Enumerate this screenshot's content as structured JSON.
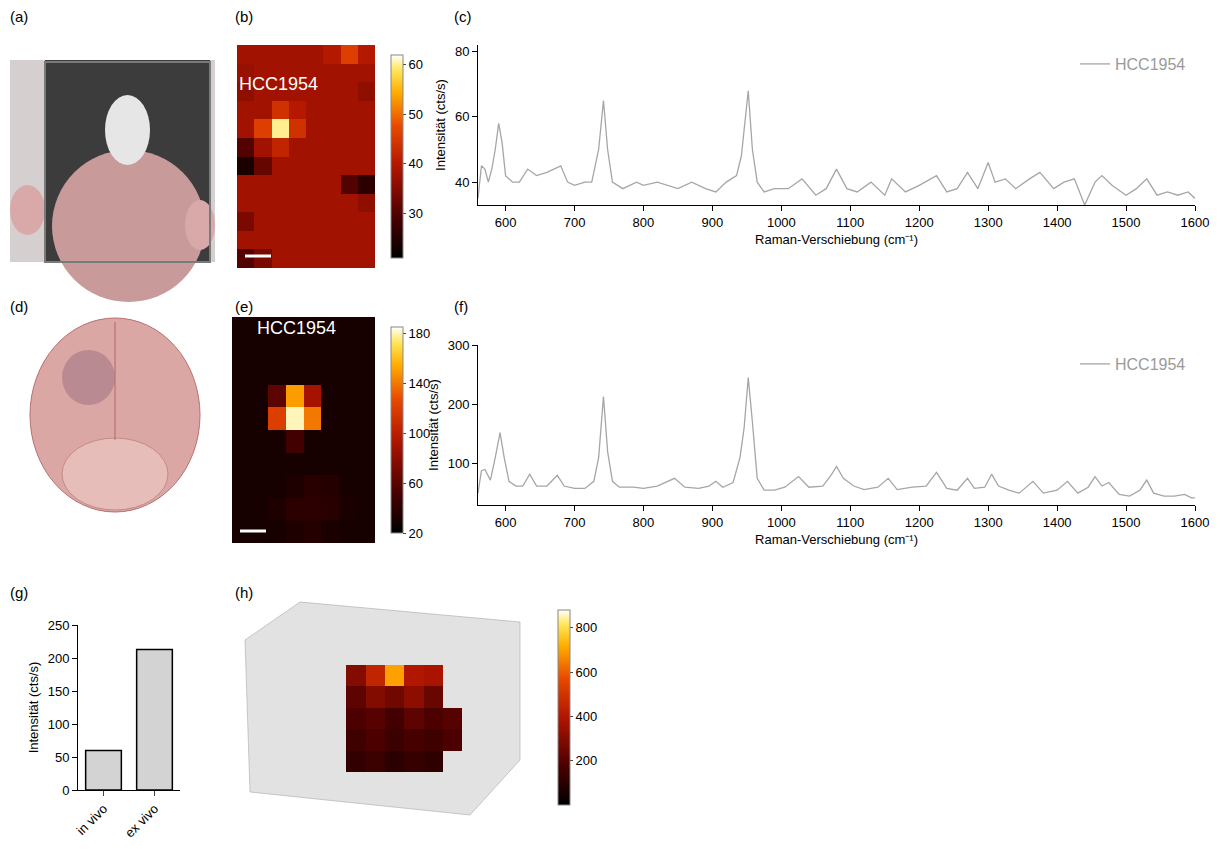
{
  "chart_data": [
    {
      "panel_label": "(a)",
      "type": "photo"
    },
    {
      "panel_label": "(b)",
      "type": "heatmap",
      "annotations": [
        "HCC1954"
      ],
      "tick_labels": false,
      "cells": [
        [
          38,
          38,
          38,
          38,
          38,
          40,
          46,
          40
        ],
        [
          37,
          38,
          38,
          38,
          38,
          38,
          38,
          38
        ],
        [
          36,
          38,
          38,
          38,
          38,
          38,
          38,
          36
        ],
        [
          38,
          38,
          44,
          40,
          38,
          38,
          38,
          38
        ],
        [
          38,
          46,
          60,
          44,
          38,
          38,
          38,
          38
        ],
        [
          30,
          38,
          42,
          38,
          38,
          38,
          38,
          38
        ],
        [
          24,
          32,
          38,
          38,
          38,
          38,
          38,
          38
        ],
        [
          38,
          38,
          38,
          38,
          38,
          38,
          30,
          26
        ],
        [
          38,
          38,
          38,
          38,
          38,
          38,
          38,
          36
        ],
        [
          34,
          38,
          38,
          38,
          38,
          38,
          38,
          38
        ],
        [
          38,
          38,
          38,
          38,
          38,
          38,
          38,
          38
        ],
        [
          30,
          34,
          38,
          38,
          38,
          38,
          38,
          38
        ]
      ],
      "zlim": [
        21,
        62
      ],
      "zticks": [
        30,
        40,
        50,
        60
      ]
    },
    {
      "panel_label": "(c)",
      "type": "line",
      "x_label": "Raman-Verschiebung (cm⁻¹)",
      "y_label": "Intensität (cts/s)",
      "x": [
        560,
        565,
        570,
        575,
        580,
        585,
        590,
        595,
        600,
        610,
        620,
        632,
        645,
        660,
        680,
        690,
        700,
        715,
        725,
        735,
        742,
        748,
        755,
        770,
        790,
        800,
        820,
        850,
        870,
        890,
        905,
        920,
        935,
        942,
        952,
        958,
        965,
        975,
        990,
        1010,
        1030,
        1050,
        1065,
        1080,
        1095,
        1110,
        1130,
        1150,
        1160,
        1180,
        1200,
        1225,
        1240,
        1255,
        1270,
        1285,
        1300,
        1310,
        1325,
        1340,
        1360,
        1375,
        1395,
        1410,
        1425,
        1440,
        1455,
        1465,
        1480,
        1500,
        1515,
        1530,
        1545,
        1560,
        1575,
        1590,
        1600
      ],
      "series": [
        {
          "name": "HCC1954",
          "color": "#a6a6a6",
          "values": [
            35,
            45,
            44,
            40,
            44,
            50,
            58,
            52,
            42,
            40,
            40,
            44,
            42,
            43,
            45,
            40,
            39,
            40,
            40,
            50,
            65,
            50,
            40,
            38,
            40,
            39,
            40,
            38,
            40,
            38,
            37,
            40,
            42,
            48,
            68,
            50,
            40,
            37,
            38,
            38,
            41,
            36,
            38,
            44,
            38,
            37,
            40,
            36,
            41,
            37,
            39,
            42,
            37,
            38,
            43,
            38,
            46,
            40,
            41,
            38,
            41,
            43,
            38,
            40,
            41,
            33,
            40,
            42,
            39,
            36,
            38,
            41,
            36,
            37,
            36,
            37,
            35
          ]
        }
      ],
      "xlim": [
        560,
        1600
      ],
      "xticks": [
        600,
        700,
        800,
        900,
        1000,
        1100,
        1200,
        1300,
        1400,
        1500,
        1600
      ],
      "ylim": [
        33,
        82
      ],
      "yticks": [
        40,
        60,
        80
      ],
      "legend": "top right",
      "grid": false
    },
    {
      "panel_label": "(d)",
      "type": "photo"
    },
    {
      "panel_label": "(e)",
      "type": "heatmap",
      "annotations": [
        "HCC1954"
      ],
      "tick_labels": false,
      "cells": [
        [
          30,
          30,
          30,
          30,
          30,
          30,
          30,
          30
        ],
        [
          30,
          30,
          30,
          30,
          30,
          30,
          30,
          30
        ],
        [
          30,
          30,
          30,
          30,
          30,
          30,
          30,
          30
        ],
        [
          30,
          30,
          60,
          150,
          90,
          30,
          30,
          30
        ],
        [
          30,
          30,
          120,
          180,
          140,
          30,
          30,
          30
        ],
        [
          30,
          30,
          30,
          50,
          30,
          30,
          30,
          30
        ],
        [
          30,
          30,
          30,
          30,
          30,
          30,
          30,
          30
        ],
        [
          30,
          30,
          30,
          34,
          38,
          36,
          30,
          30
        ],
        [
          30,
          30,
          34,
          40,
          40,
          38,
          32,
          30
        ],
        [
          30,
          30,
          30,
          34,
          36,
          32,
          30,
          30
        ]
      ],
      "zlim": [
        20,
        185
      ],
      "zticks": [
        20,
        60,
        100,
        140,
        180
      ]
    },
    {
      "panel_label": "(f)",
      "type": "line",
      "x_label": "Raman-Verschiebung (cm⁻¹)",
      "y_label": "Intensität (cts/s)",
      "x": [
        560,
        565,
        570,
        578,
        585,
        592,
        598,
        605,
        615,
        625,
        635,
        645,
        660,
        675,
        685,
        700,
        715,
        728,
        735,
        742,
        748,
        755,
        765,
        785,
        800,
        820,
        845,
        860,
        880,
        895,
        905,
        915,
        930,
        940,
        946,
        952,
        958,
        965,
        975,
        990,
        1005,
        1025,
        1040,
        1060,
        1072,
        1080,
        1090,
        1105,
        1120,
        1140,
        1155,
        1168,
        1190,
        1210,
        1225,
        1240,
        1255,
        1270,
        1280,
        1295,
        1305,
        1315,
        1330,
        1345,
        1365,
        1380,
        1400,
        1415,
        1430,
        1445,
        1455,
        1465,
        1475,
        1490,
        1505,
        1520,
        1530,
        1540,
        1555,
        1570,
        1585,
        1595,
        1600
      ],
      "series": [
        {
          "name": "HCC1954",
          "color": "#a6a6a6",
          "values": [
            50,
            88,
            90,
            72,
            110,
            152,
            110,
            70,
            62,
            62,
            82,
            62,
            62,
            80,
            62,
            58,
            58,
            70,
            110,
            213,
            120,
            70,
            60,
            60,
            58,
            62,
            75,
            60,
            58,
            62,
            70,
            60,
            68,
            110,
            160,
            245,
            170,
            75,
            55,
            55,
            60,
            78,
            60,
            62,
            80,
            95,
            75,
            62,
            56,
            60,
            75,
            56,
            60,
            62,
            85,
            58,
            55,
            75,
            58,
            60,
            82,
            62,
            55,
            50,
            70,
            50,
            55,
            70,
            50,
            60,
            78,
            62,
            68,
            48,
            45,
            55,
            72,
            50,
            45,
            45,
            48,
            42,
            42
          ]
        }
      ],
      "xlim": [
        560,
        1600
      ],
      "xticks": [
        600,
        700,
        800,
        900,
        1000,
        1100,
        1200,
        1300,
        1400,
        1500,
        1600
      ],
      "ylim": [
        30,
        300
      ],
      "yticks": [
        100,
        200,
        300
      ],
      "legend": "top right",
      "grid": false
    },
    {
      "panel_label": "(g)",
      "type": "bar",
      "y_label": "Intensität (cts/s)",
      "categories": [
        "in vivo",
        "ex vivo"
      ],
      "values": [
        60,
        213
      ],
      "color": "#d3d3d3",
      "ylim": [
        0,
        250
      ],
      "yticks": [
        0,
        50,
        100,
        150,
        200,
        250
      ],
      "grid": false
    },
    {
      "panel_label": "(h)",
      "type": "heatmap",
      "tick_labels": false,
      "cells": [
        [
          null,
          null,
          null,
          null,
          null,
          null,
          null,
          null,
          null,
          null,
          null,
          null,
          null,
          null
        ],
        [
          null,
          null,
          null,
          null,
          null,
          null,
          null,
          null,
          null,
          null,
          null,
          null,
          null,
          null
        ],
        [
          null,
          null,
          null,
          null,
          null,
          null,
          null,
          null,
          null,
          null,
          null,
          null,
          null,
          null
        ],
        [
          null,
          null,
          null,
          null,
          null,
          300,
          450,
          700,
          400,
          380,
          null,
          null,
          null,
          null
        ],
        [
          null,
          null,
          null,
          null,
          null,
          220,
          300,
          260,
          320,
          240,
          null,
          null,
          null,
          null
        ],
        [
          null,
          null,
          null,
          null,
          null,
          180,
          200,
          160,
          220,
          180,
          200,
          null,
          null,
          null
        ],
        [
          null,
          null,
          null,
          null,
          null,
          150,
          180,
          140,
          170,
          150,
          180,
          null,
          null,
          null
        ],
        [
          null,
          null,
          null,
          null,
          null,
          120,
          140,
          100,
          130,
          110,
          null,
          null,
          null,
          null
        ],
        [
          null,
          null,
          null,
          null,
          null,
          null,
          null,
          null,
          null,
          null,
          null,
          null,
          null,
          null
        ],
        [
          null,
          null,
          null,
          null,
          null,
          null,
          null,
          null,
          null,
          null,
          null,
          null,
          null,
          null
        ]
      ],
      "zlim": [
        0,
        880
      ],
      "zticks": [
        200,
        400,
        600,
        800
      ]
    }
  ]
}
